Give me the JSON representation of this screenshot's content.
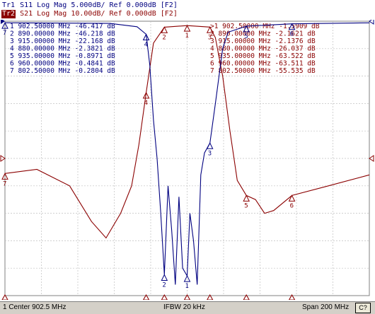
{
  "header": {
    "trace1": {
      "id": "Tr1",
      "text": "S11 Log Mag 5.000dB/ Ref 0.000dB [F2]"
    },
    "trace2": {
      "id": "Tr2",
      "text": "S21 Log Mag 10.00dB/ Ref 0.000dB [F2]"
    }
  },
  "markers_s11": [
    {
      "n": "1",
      "freq": "902.50000 MHz",
      "val": "-46.417 dB"
    },
    {
      "n": "2",
      "freq": "890.00000 MHz",
      "val": "-46.218 dB"
    },
    {
      "n": "3",
      "freq": "915.00000 MHz",
      "val": "-22.168 dB"
    },
    {
      "n": "4",
      "freq": "880.00000 MHz",
      "val": "-2.3821 dB"
    },
    {
      "n": "5",
      "freq": "935.00000 MHz",
      "val": "-0.8971 dB"
    },
    {
      "n": "6",
      "freq": "960.00000 MHz",
      "val": "-0.4841 dB"
    },
    {
      "n": "7",
      "freq": "802.50000 MHz",
      "val": "-0.2804 dB"
    }
  ],
  "markers_s21": [
    {
      "n": ">1",
      "freq": "902.50000 MHz",
      "val": "-1.5909 dB"
    },
    {
      "n": "2",
      "freq": "890.00000 MHz",
      "val": "-2.1621 dB"
    },
    {
      "n": "3",
      "freq": "915.00000 MHz",
      "val": "-2.1376 dB"
    },
    {
      "n": "4",
      "freq": "880.00000 MHz",
      "val": "-26.037 dB"
    },
    {
      "n": "5",
      "freq": "935.00000 MHz",
      "val": "-63.522 dB"
    },
    {
      "n": "6",
      "freq": "960.00000 MHz",
      "val": "-63.511 dB"
    },
    {
      "n": "7",
      "freq": "802.50000 MHz",
      "val": "-55.535 dB"
    }
  ],
  "status": {
    "left": "1 Center 902.5 MHz",
    "middle": "IFBW 20 kHz",
    "right": "Span 200 MHz",
    "button": "C?"
  },
  "colors": {
    "s11": "#000080",
    "s21": "#8b0000",
    "grid": "#c0c0c0"
  },
  "chart_data": {
    "type": "line",
    "x_unit": "MHz",
    "x_range": [
      802.5,
      1002.5
    ],
    "series": [
      {
        "name": "S11",
        "scale": "5.000dB/",
        "ref": "0.000dB",
        "y_range": [
          -50,
          0
        ],
        "points": [
          [
            802.5,
            -0.28
          ],
          [
            860,
            -0.4
          ],
          [
            875,
            -1
          ],
          [
            880,
            -2.38
          ],
          [
            882,
            -8
          ],
          [
            884,
            -18
          ],
          [
            886,
            -25
          ],
          [
            888,
            -35
          ],
          [
            890,
            -46.2
          ],
          [
            892,
            -30
          ],
          [
            894,
            -38
          ],
          [
            896,
            -48
          ],
          [
            898,
            -32
          ],
          [
            900,
            -45
          ],
          [
            902.5,
            -46.4
          ],
          [
            904,
            -35
          ],
          [
            906,
            -40
          ],
          [
            908,
            -48
          ],
          [
            910,
            -28
          ],
          [
            912,
            -24
          ],
          [
            915,
            -22.2
          ],
          [
            918,
            -15
          ],
          [
            922,
            -5
          ],
          [
            925,
            -2
          ],
          [
            935,
            -0.9
          ],
          [
            960,
            -0.48
          ],
          [
            1002.5,
            -0.3
          ]
        ]
      },
      {
        "name": "S21",
        "scale": "10.00dB/",
        "ref": "0.000dB",
        "y_range": [
          -100,
          0
        ],
        "points": [
          [
            802.5,
            -55.5
          ],
          [
            820,
            -54
          ],
          [
            838,
            -60
          ],
          [
            850,
            -73
          ],
          [
            858,
            -79
          ],
          [
            866,
            -70
          ],
          [
            872,
            -60
          ],
          [
            876,
            -45
          ],
          [
            880,
            -26
          ],
          [
            884,
            -8
          ],
          [
            890,
            -2.16
          ],
          [
            902.5,
            -1.59
          ],
          [
            915,
            -2.14
          ],
          [
            918,
            -6
          ],
          [
            922,
            -20
          ],
          [
            926,
            -40
          ],
          [
            930,
            -58
          ],
          [
            935,
            -63.5
          ],
          [
            940,
            -65
          ],
          [
            945,
            -70
          ],
          [
            950,
            -69
          ],
          [
            960,
            -63.5
          ],
          [
            980,
            -60
          ],
          [
            1002.5,
            -56
          ]
        ]
      }
    ]
  }
}
